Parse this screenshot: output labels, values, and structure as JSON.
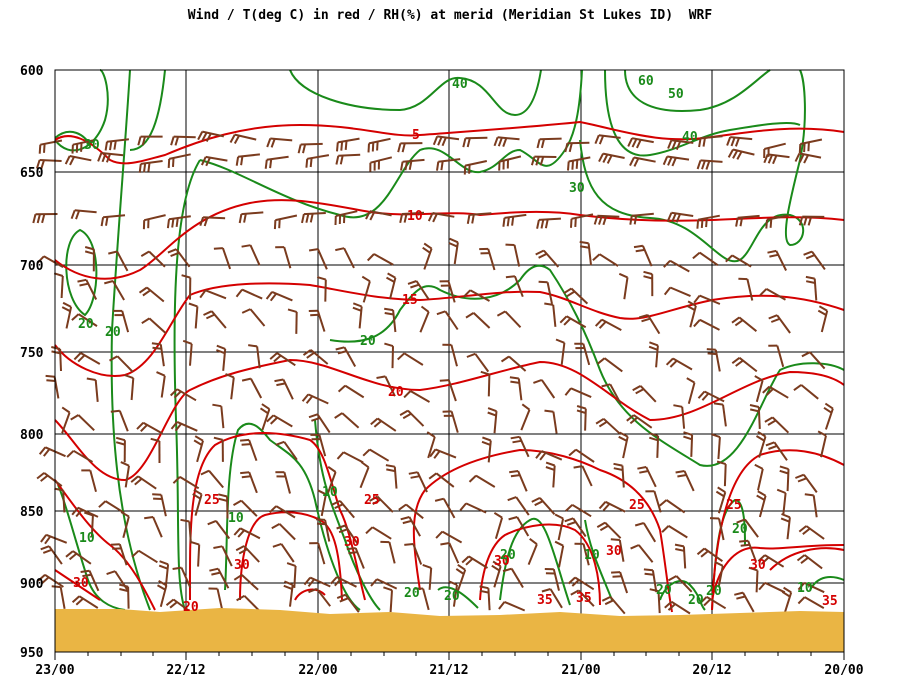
{
  "chart_data": {
    "type": "time-height cross section",
    "title": "Wind / T(deg C) in red / RH(%) at merid (Meridian St Lukes ID)  WRF",
    "y_axis": {
      "ticks": [
        "600",
        "650",
        "700",
        "750",
        "800",
        "850",
        "900",
        "950"
      ],
      "range": [
        600,
        950
      ]
    },
    "x_axis": {
      "ticks": [
        "23/00",
        "22/12",
        "22/00",
        "21/12",
        "21/00",
        "20/12",
        "20/00"
      ],
      "range": [
        "23/00",
        "20/00"
      ]
    },
    "temperature_labels": [
      "5",
      "10",
      "15",
      "20",
      "25",
      "25",
      "25",
      "25",
      "30",
      "30",
      "30",
      "30",
      "30",
      "30",
      "35",
      "35",
      "35",
      "20"
    ],
    "rh_labels": [
      "40",
      "60",
      "50",
      "40",
      "30",
      "20",
      "20",
      "20",
      "20",
      "20",
      "20",
      "20",
      "10",
      "10",
      "10",
      "10",
      "10",
      "20",
      "20",
      "20",
      "30"
    ],
    "colors": {
      "temperature": "#d40000",
      "rh": "#1a8a1a",
      "wind": "#7a3b1e",
      "terrain": "#eab544",
      "grid": "#000000"
    }
  }
}
